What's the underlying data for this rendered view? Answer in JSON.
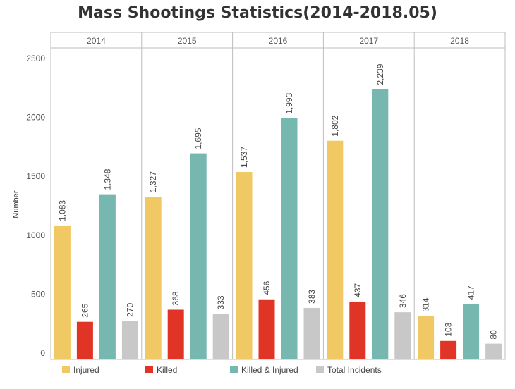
{
  "chart_data": {
    "type": "bar",
    "title": "Mass Shootings Statistics(2014-2018.05)",
    "xlabel": "",
    "ylabel": "Number",
    "ylim": [
      0,
      2600
    ],
    "yticks": [
      "0",
      "500",
      "1000",
      "1500",
      "2000",
      "2500"
    ],
    "categories": [
      "2014",
      "2015",
      "2016",
      "2017",
      "2018"
    ],
    "series": [
      {
        "name": "Injured",
        "color": "#f0c964",
        "values": [
          1083,
          1327,
          1537,
          1802,
          314
        ],
        "labels": [
          "1,083",
          "1,327",
          "1,537",
          "1,802",
          "314"
        ]
      },
      {
        "name": "Killed",
        "color": "#e03526",
        "values": [
          265,
          368,
          456,
          437,
          103
        ],
        "labels": [
          "265",
          "368",
          "456",
          "437",
          "103"
        ]
      },
      {
        "name": "Killed & Injured",
        "color": "#76b7b0",
        "values": [
          1348,
          1695,
          1993,
          2239,
          417
        ],
        "labels": [
          "1,348",
          "1,695",
          "1,993",
          "2,239",
          "417"
        ]
      },
      {
        "name": "Total Incidents",
        "color": "#c8c8c8",
        "values": [
          270,
          333,
          383,
          346,
          80
        ],
        "labels": [
          "270",
          "333",
          "383",
          "346",
          "80"
        ]
      }
    ],
    "grid": false,
    "legend_position": "bottom"
  }
}
